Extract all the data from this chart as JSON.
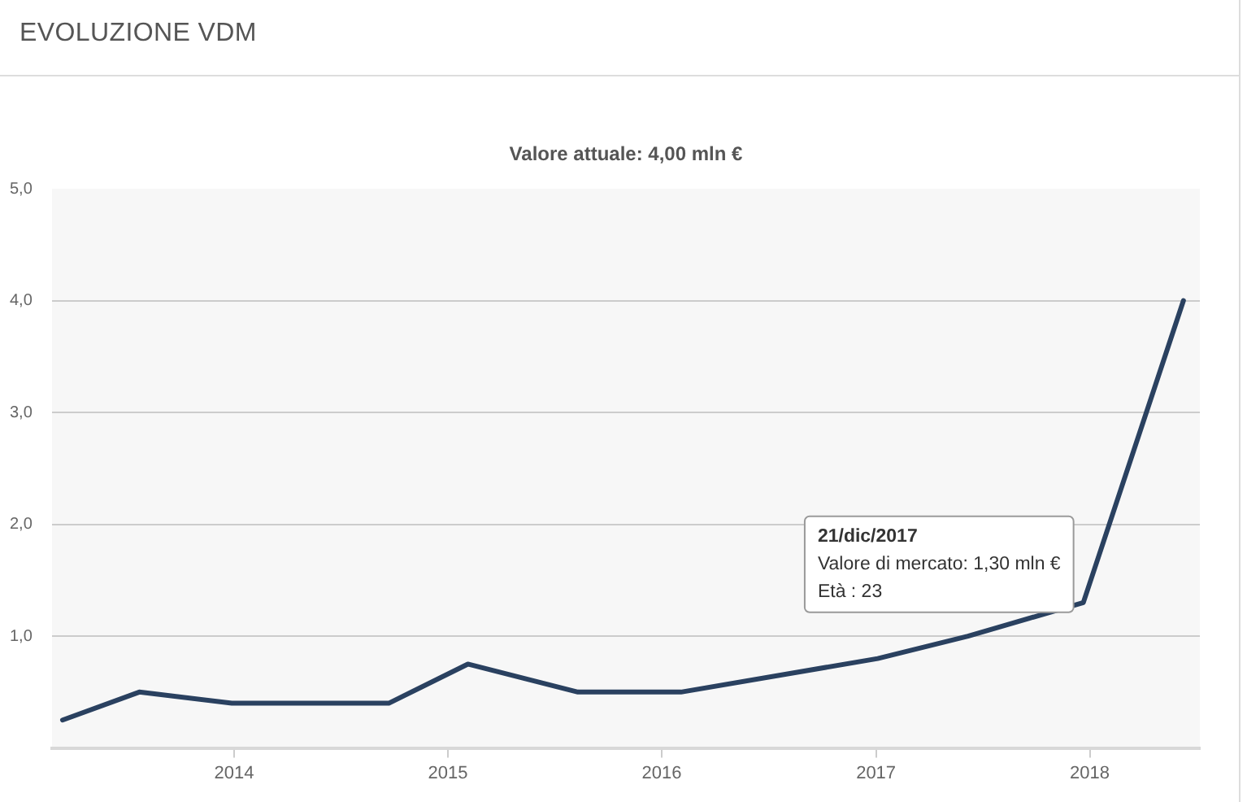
{
  "chart_data": {
    "type": "line",
    "title": "EVOLUZIONE VDM",
    "subtitle": "Valore attuale: 4,00 mln €",
    "x": [
      "2013-03-14",
      "2013-07-23",
      "2013-12-28",
      "2014-09-22",
      "2015-02-04",
      "2015-08-11",
      "2016-02-03",
      "2017-01-04",
      "2017-06-07",
      "2017-12-21",
      "2018-06-10"
    ],
    "values": [
      0.25,
      0.5,
      0.4,
      0.4,
      0.75,
      0.5,
      0.5,
      0.8,
      1.0,
      1.3,
      4.0
    ],
    "color": "#2a4160",
    "xlim": [
      "2013-02-24",
      "2018-07-08"
    ],
    "xticks": [
      "2014",
      "2015",
      "2016",
      "2017",
      "2018"
    ],
    "ylim": [
      0,
      5
    ],
    "yticks": [
      {
        "value": 0,
        "label": null
      },
      {
        "value": 1,
        "label": "1,0"
      },
      {
        "value": 2,
        "label": "2,0"
      },
      {
        "value": 3,
        "label": "3,0"
      },
      {
        "value": 4,
        "label": "4,0"
      },
      {
        "value": 5,
        "label": "5,0"
      }
    ],
    "grid": "y",
    "marker": "none",
    "annotations": [
      {
        "text": "21/dic/2017\nValore di mercato: 1,30 mln €\nEtà : 23",
        "x": "2017-12-21",
        "y": 1.3
      }
    ]
  }
}
